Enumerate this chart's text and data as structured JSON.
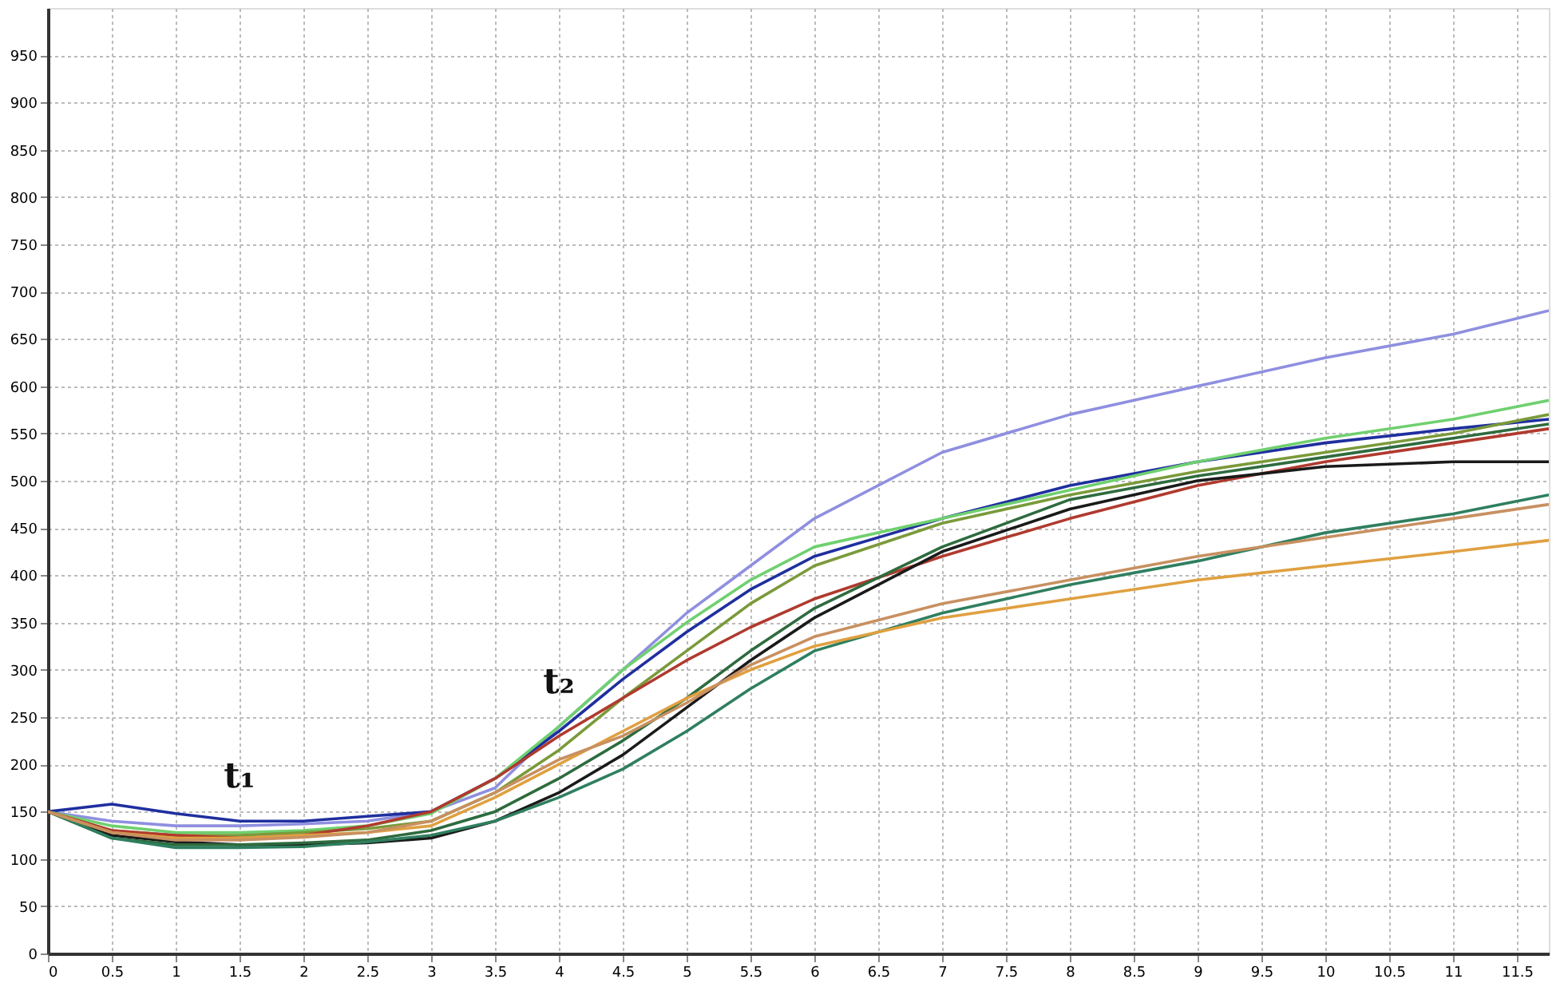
{
  "chart_data": {
    "type": "line",
    "x": [
      0,
      0.5,
      1,
      1.5,
      2,
      2.5,
      3,
      3.5,
      4,
      4.5,
      5,
      5.5,
      6,
      7,
      8,
      9,
      10,
      11,
      11.75
    ],
    "series": [
      {
        "color": "#8f8fe0",
        "values": [
          150,
          140,
          135,
          135,
          137,
          140,
          150,
          175,
          240,
          300,
          360,
          410,
          460,
          530,
          570,
          600,
          630,
          655,
          680
        ]
      },
      {
        "color": "#1f2f9f",
        "values": [
          150,
          158,
          148,
          140,
          140,
          145,
          150,
          185,
          235,
          290,
          340,
          385,
          420,
          460,
          495,
          520,
          540,
          555,
          565
        ]
      },
      {
        "color": "#6fd06f",
        "values": [
          150,
          135,
          128,
          128,
          130,
          135,
          148,
          185,
          240,
          300,
          350,
          395,
          430,
          460,
          490,
          520,
          545,
          565,
          585
        ]
      },
      {
        "color": "#7a9a3a",
        "values": [
          150,
          130,
          125,
          125,
          128,
          132,
          140,
          170,
          215,
          270,
          320,
          370,
          410,
          455,
          485,
          510,
          530,
          550,
          570
        ]
      },
      {
        "color": "#b03a2e",
        "values": [
          150,
          130,
          125,
          122,
          125,
          135,
          150,
          185,
          230,
          270,
          310,
          345,
          375,
          420,
          460,
          495,
          520,
          540,
          555
        ]
      },
      {
        "color": "#1a1a1a",
        "values": [
          150,
          125,
          118,
          115,
          115,
          117,
          122,
          140,
          170,
          210,
          260,
          310,
          355,
          425,
          470,
          500,
          515,
          520,
          520
        ]
      },
      {
        "color": "#2e6b3e",
        "values": [
          150,
          122,
          115,
          115,
          117,
          120,
          130,
          150,
          185,
          225,
          270,
          320,
          365,
          430,
          480,
          505,
          525,
          545,
          560
        ]
      },
      {
        "color": "#2f7f5f",
        "values": [
          150,
          122,
          112,
          112,
          113,
          118,
          125,
          140,
          165,
          195,
          235,
          280,
          320,
          360,
          390,
          415,
          445,
          465,
          485
        ]
      },
      {
        "color": "#e0a040",
        "values": [
          150,
          128,
          122,
          122,
          125,
          128,
          135,
          165,
          200,
          235,
          270,
          300,
          325,
          355,
          375,
          395,
          410,
          425,
          437
        ]
      },
      {
        "color": "#c89060",
        "values": [
          150,
          128,
          120,
          120,
          123,
          128,
          140,
          170,
          205,
          230,
          265,
          305,
          335,
          370,
          395,
          420,
          440,
          460,
          475
        ]
      }
    ],
    "annotations": [
      {
        "text": "t₁",
        "x": 1.5,
        "y": 140
      },
      {
        "text": "t₂",
        "x": 4,
        "y": 240
      }
    ],
    "xlim": [
      0,
      11.75
    ],
    "xticks": [
      0,
      0.5,
      1,
      1.5,
      2,
      2.5,
      3,
      3.5,
      4,
      4.5,
      5,
      5.5,
      6,
      6.5,
      7,
      7.5,
      8,
      8.5,
      9,
      9.5,
      10,
      10.5,
      11,
      11.5
    ],
    "ylim": [
      0,
      1000
    ],
    "yticks": [
      0,
      50,
      100,
      150,
      200,
      250,
      300,
      350,
      400,
      450,
      500,
      550,
      600,
      650,
      700,
      750,
      800,
      850,
      900,
      950
    ],
    "grid": true,
    "legend": false,
    "marker": "none",
    "line_style": "solid"
  }
}
